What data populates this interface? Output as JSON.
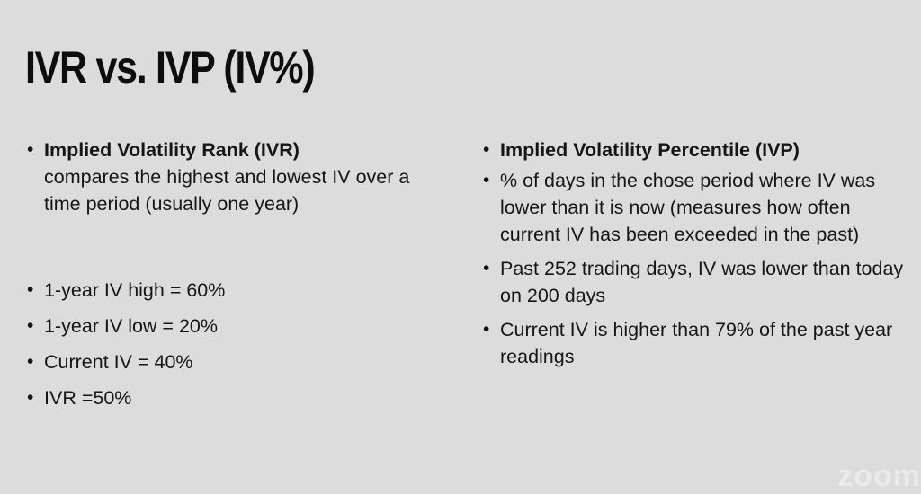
{
  "slide": {
    "title": "IVR vs. IVP (IV%)",
    "left": {
      "heading": "Implied Volatility Rank (IVR)",
      "heading_desc": "compares the highest and lowest IV over a time period (usually one year)",
      "items": [
        "1-year IV high = 60%",
        "1-year IV low = 20%",
        "Current IV = 40%",
        "IVR =50%"
      ]
    },
    "right": {
      "heading": "Implied Volatility Percentile (IVP)",
      "items": [
        "% of days in the chose period where IV was lower than it is now (measures how often current IV has been exceeded in the past)",
        "Past 252 trading days, IV was lower than today on 200 days",
        "Current IV is higher than 79% of the past year readings"
      ]
    },
    "watermark": "zoom",
    "colors": {
      "background": "#dcdcdc",
      "text": "#111111"
    }
  }
}
